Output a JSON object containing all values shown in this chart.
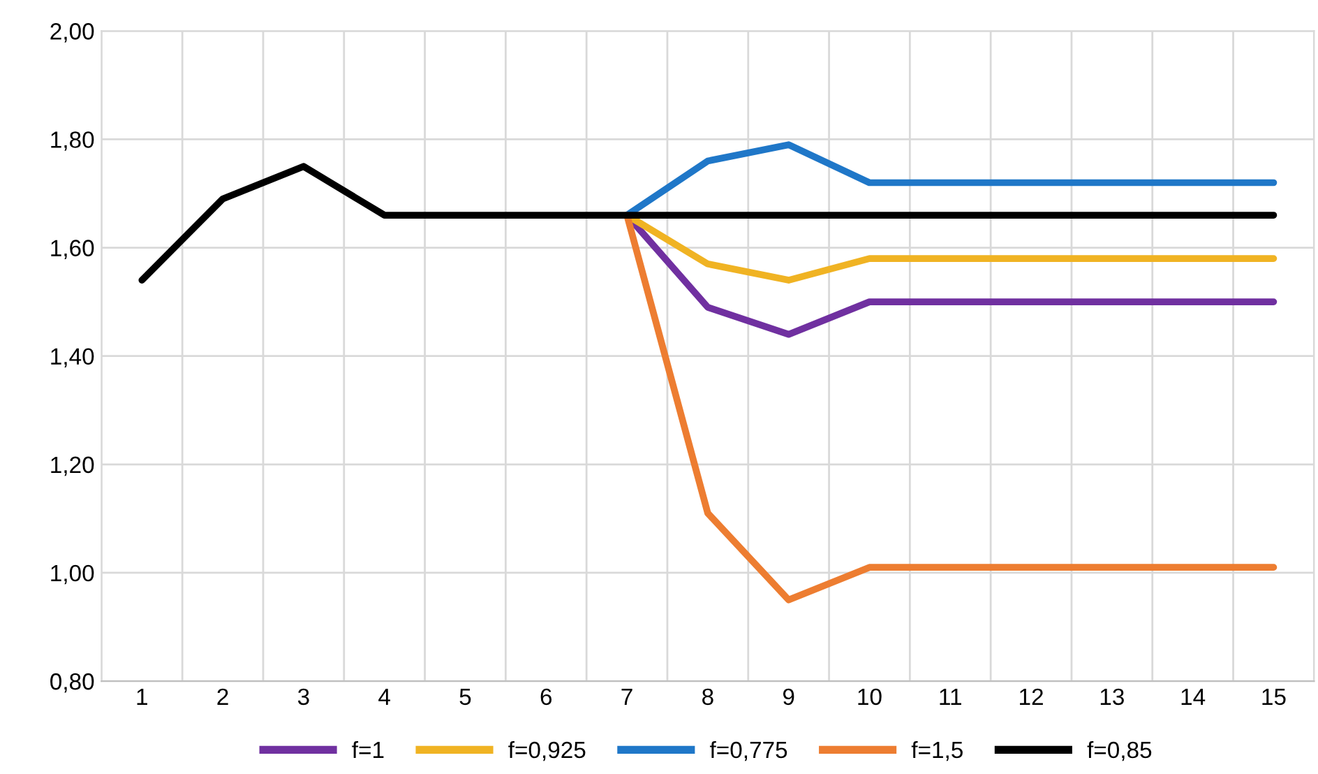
{
  "chart_data": {
    "type": "line",
    "categories": [
      "1",
      "2",
      "3",
      "4",
      "5",
      "6",
      "7",
      "8",
      "9",
      "10",
      "11",
      "12",
      "13",
      "14",
      "15"
    ],
    "series": [
      {
        "name": "f=1",
        "color": "#7030a0",
        "values": [
          null,
          null,
          null,
          null,
          null,
          null,
          1.66,
          1.49,
          1.44,
          1.5,
          1.5,
          1.5,
          1.5,
          1.5,
          1.5
        ]
      },
      {
        "name": "f=0,925",
        "color": "#f0b323",
        "values": [
          null,
          null,
          null,
          null,
          null,
          null,
          1.66,
          1.57,
          1.54,
          1.58,
          1.58,
          1.58,
          1.58,
          1.58,
          1.58
        ]
      },
      {
        "name": "f=0,775",
        "color": "#1f77c8",
        "values": [
          null,
          null,
          null,
          null,
          null,
          null,
          1.66,
          1.76,
          1.79,
          1.72,
          1.72,
          1.72,
          1.72,
          1.72,
          1.72
        ]
      },
      {
        "name": "f=1,5",
        "color": "#ed7d31",
        "values": [
          null,
          null,
          null,
          null,
          null,
          null,
          1.66,
          1.11,
          0.95,
          1.01,
          1.01,
          1.01,
          1.01,
          1.01,
          1.01
        ]
      },
      {
        "name": "f=0,85",
        "color": "#000000",
        "values": [
          1.54,
          1.69,
          1.75,
          1.66,
          1.66,
          1.66,
          1.66,
          1.66,
          1.66,
          1.66,
          1.66,
          1.66,
          1.66,
          1.66,
          1.66
        ]
      }
    ],
    "ylim": [
      0.8,
      2.0
    ],
    "yticks": [
      {
        "value": 0.8,
        "label": "0,80"
      },
      {
        "value": 1.0,
        "label": "1,00"
      },
      {
        "value": 1.2,
        "label": "1,20"
      },
      {
        "value": 1.4,
        "label": "1,40"
      },
      {
        "value": 1.6,
        "label": "1,60"
      },
      {
        "value": 1.8,
        "label": "1,80"
      },
      {
        "value": 2.0,
        "label": "2,00"
      }
    ],
    "grid": true,
    "legend": "bottom",
    "marker": "none",
    "line_style": "solid"
  }
}
